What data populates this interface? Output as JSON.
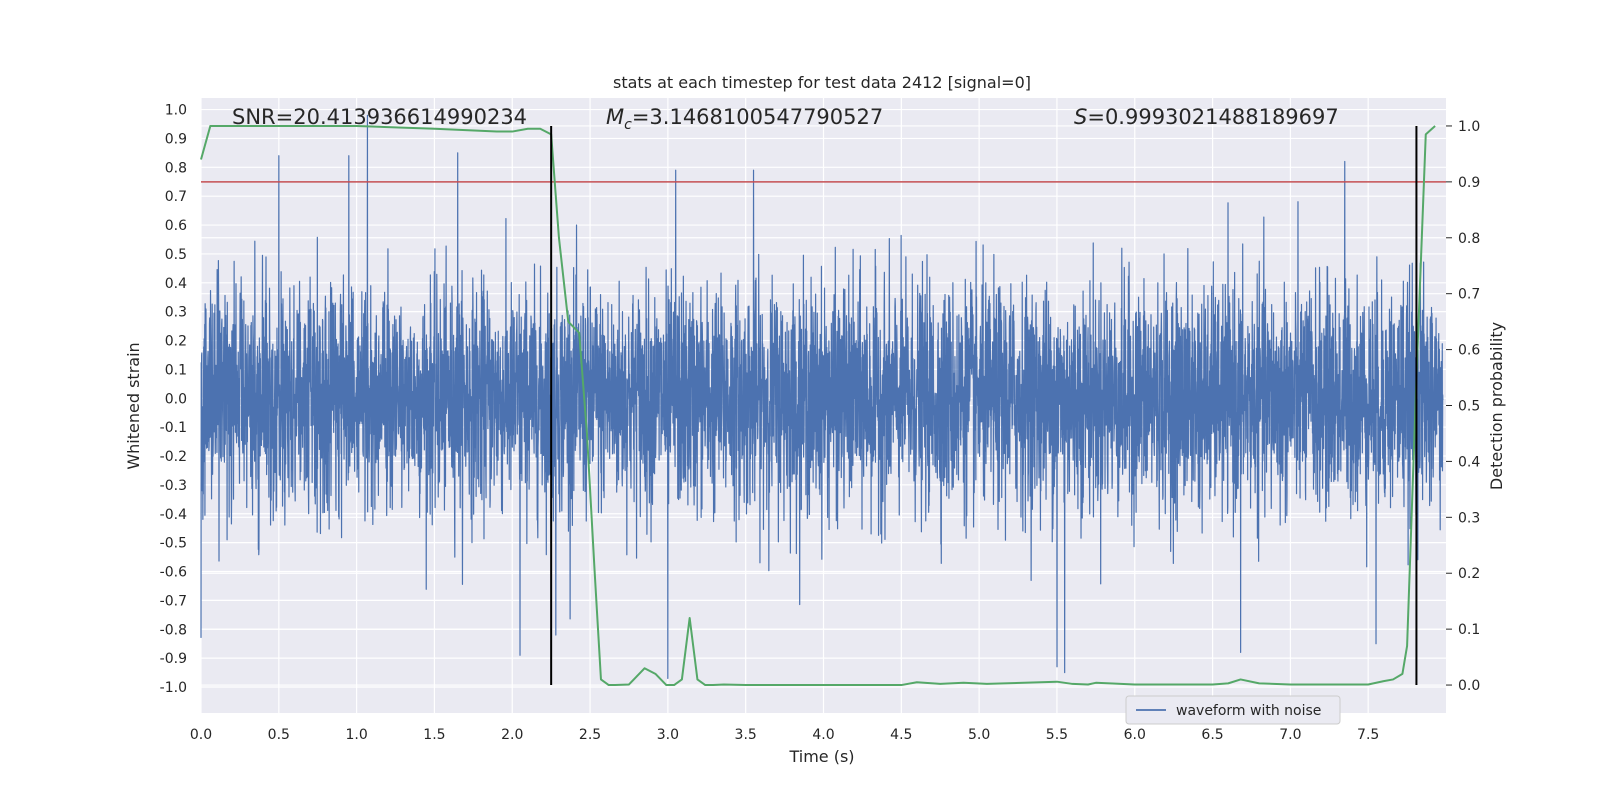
{
  "chart_data": {
    "type": "line",
    "title": "stats at each timestep for test data 2412 [signal=0]",
    "xlabel": "Time (s)",
    "ylabel": "Whitened strain",
    "y2label": "Detection probability",
    "xlim": [
      0.0,
      8.0
    ],
    "ylim": [
      -1.09,
      1.04
    ],
    "y2lim": [
      -0.05,
      1.05
    ],
    "xticks": [
      "0.0",
      "0.5",
      "1.0",
      "1.5",
      "2.0",
      "2.5",
      "3.0",
      "3.5",
      "4.0",
      "4.5",
      "5.0",
      "5.5",
      "6.0",
      "6.5",
      "7.0",
      "7.5"
    ],
    "yticks": [
      "1.0",
      "0.9",
      "0.8",
      "0.7",
      "0.6",
      "0.5",
      "0.4",
      "0.3",
      "0.2",
      "0.1",
      "0.0",
      "-0.1",
      "-0.2",
      "-0.3",
      "-0.4",
      "-0.5",
      "-0.6",
      "-0.7",
      "-0.8",
      "-0.9",
      "-1.0"
    ],
    "y2ticks": [
      "1.0",
      "0.9",
      "0.8",
      "0.7",
      "0.6",
      "0.5",
      "0.4",
      "0.3",
      "0.2",
      "0.1",
      "0.0"
    ],
    "stats": {
      "snr": "SNR=20.413936614990234",
      "mc_symbol": "M",
      "mc_sub": "c",
      "mc_value": "=3.1468100547790527",
      "s_symbol": "S",
      "s_value": "=0.9993021488189697"
    },
    "threshold_line": {
      "value": 0.9,
      "axis": "y2",
      "color": "#c44e52"
    },
    "vertical_lines": [
      2.25,
      7.81
    ],
    "waveform": {
      "name": "waveform with noise",
      "color": "#4c72b0",
      "notable_peaks": [
        {
          "t": 1.07,
          "v": 0.98
        },
        {
          "t": 0.5,
          "v": 0.84
        },
        {
          "t": 0.95,
          "v": 0.84
        },
        {
          "t": 1.65,
          "v": 0.85
        },
        {
          "t": 3.05,
          "v": 0.79
        },
        {
          "t": 3.55,
          "v": 0.79
        },
        {
          "t": 7.35,
          "v": 0.82
        },
        {
          "t": 0.0,
          "v": -0.83
        },
        {
          "t": 2.05,
          "v": -0.89
        },
        {
          "t": 2.28,
          "v": -0.82
        },
        {
          "t": 3.0,
          "v": -0.97
        },
        {
          "t": 5.5,
          "v": -0.93
        },
        {
          "t": 5.55,
          "v": -0.95
        },
        {
          "t": 6.68,
          "v": -0.88
        },
        {
          "t": 7.55,
          "v": -0.85
        }
      ]
    },
    "probability": {
      "name": "detection probability",
      "color": "#55a868",
      "x": [
        0.0,
        0.06,
        0.15,
        1.0,
        1.5,
        1.9,
        2.0,
        2.1,
        2.18,
        2.25,
        2.3,
        2.36,
        2.43,
        2.48,
        2.53,
        2.57,
        2.62,
        2.66,
        2.75,
        2.85,
        2.92,
        2.99,
        3.04,
        3.09,
        3.14,
        3.19,
        3.24,
        3.29,
        3.36,
        3.5,
        4.0,
        4.5,
        4.6,
        4.75,
        4.9,
        5.05,
        5.5,
        5.6,
        5.7,
        5.75,
        6.0,
        6.5,
        6.6,
        6.68,
        6.8,
        7.0,
        7.5,
        7.6,
        7.66,
        7.72,
        7.75,
        7.81,
        7.87,
        7.93
      ],
      "y": [
        0.94,
        1.0,
        1.0,
        1.0,
        0.995,
        0.99,
        0.99,
        0.995,
        0.995,
        0.985,
        0.8,
        0.65,
        0.63,
        0.45,
        0.2,
        0.01,
        0.0,
        0.0,
        0.001,
        0.03,
        0.02,
        0.0,
        0.0,
        0.01,
        0.12,
        0.01,
        0.0,
        0.0,
        0.001,
        0.0,
        0.0,
        0.0,
        0.005,
        0.002,
        0.004,
        0.002,
        0.006,
        0.002,
        0.001,
        0.004,
        0.001,
        0.001,
        0.003,
        0.01,
        0.003,
        0.001,
        0.001,
        0.007,
        0.01,
        0.02,
        0.07,
        0.55,
        0.985,
        1.0
      ]
    },
    "legend": {
      "label": "waveform with noise",
      "placement": "lower-right"
    }
  }
}
